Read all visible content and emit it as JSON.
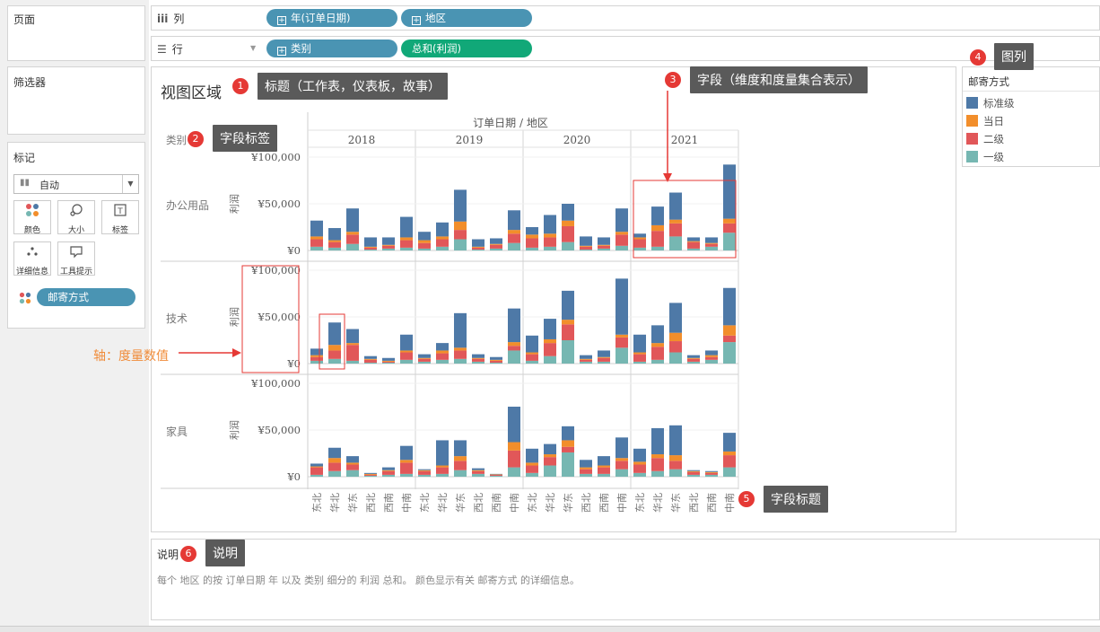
{
  "left_panel": {
    "pages_title": "页面",
    "filters_title": "筛选器",
    "marks": {
      "title": "标记",
      "mark_type": "自动",
      "buttons": [
        {
          "label": "颜色",
          "icon": "color-icon"
        },
        {
          "label": "大小",
          "icon": "size-icon"
        },
        {
          "label": "标签",
          "icon": "label-icon"
        },
        {
          "label": "详细信息",
          "icon": "detail-icon"
        },
        {
          "label": "工具提示",
          "icon": "tooltip-icon"
        }
      ],
      "color_field": "邮寄方式"
    }
  },
  "shelves": {
    "columns_label": "列",
    "rows_label": "行",
    "column_pills": [
      "年(订单日期)",
      "地区"
    ],
    "row_pills": [
      "类别",
      "总和(利润)"
    ]
  },
  "view": {
    "title": "视图区域",
    "column_header_title": "订单日期 / 地区",
    "row_header_title": "类别",
    "axis_label": "利润",
    "axis_ticks": [
      "¥100,000",
      "¥50,000",
      "¥0"
    ]
  },
  "legend": {
    "title": "邮寄方式",
    "items": [
      {
        "label": "标准级",
        "color": "#4e79a7"
      },
      {
        "label": "当日",
        "color": "#f28e2b"
      },
      {
        "label": "二级",
        "color": "#e15759"
      },
      {
        "label": "一级",
        "color": "#76b7b2"
      }
    ]
  },
  "caption": {
    "title": "说明",
    "text": "每个 地区 的按 订单日期 年 以及 类别 细分的 利润 总和。 颜色显示有关 邮寄方式 的详细信息。"
  },
  "annotations": [
    {
      "n": "1",
      "text": "标题（工作表，仪表板，故事）"
    },
    {
      "n": "2",
      "text": "字段标签"
    },
    {
      "n": "3",
      "text": "字段（维度和度量集合表示）"
    },
    {
      "n": "4",
      "text": "图列"
    },
    {
      "n": "5",
      "text": "字段标题"
    },
    {
      "n": "6",
      "text": "说明"
    }
  ],
  "axis_note": "轴：度量数值",
  "chart_data": {
    "type": "bar",
    "stacked": true,
    "title": "视图区域",
    "xlabel": "订单日期 / 地区",
    "ylabel": "利润",
    "ylim": [
      0,
      100000
    ],
    "years": [
      "2018",
      "2019",
      "2020",
      "2021"
    ],
    "regions": [
      "东北",
      "华北",
      "华东",
      "西北",
      "西南",
      "中南"
    ],
    "categories": [
      "办公用品",
      "技术",
      "家具"
    ],
    "series_order": [
      "一级",
      "二级",
      "当日",
      "标准级"
    ],
    "values": {
      "办公用品": {
        "2018": [
          [
            4000,
            8000,
            3000,
            17000
          ],
          [
            3000,
            6000,
            2000,
            13000
          ],
          [
            7000,
            10000,
            3000,
            25000
          ],
          [
            1000,
            2000,
            1000,
            10000
          ],
          [
            2000,
            3000,
            1000,
            8000
          ],
          [
            3000,
            8000,
            3000,
            22000
          ]
        ],
        "2019": [
          [
            2000,
            6000,
            3000,
            9000
          ],
          [
            4000,
            8000,
            3000,
            15000
          ],
          [
            12000,
            10000,
            9000,
            34000
          ],
          [
            1000,
            2000,
            1000,
            8000
          ],
          [
            2000,
            4000,
            1000,
            6000
          ],
          [
            8000,
            10000,
            4000,
            21000
          ]
        ],
        "2020": [
          [
            3000,
            10000,
            4000,
            8000
          ],
          [
            4000,
            10000,
            4000,
            20000
          ],
          [
            9000,
            17000,
            6000,
            18000
          ],
          [
            1000,
            3000,
            1000,
            10000
          ],
          [
            2000,
            3000,
            1000,
            8000
          ],
          [
            5000,
            12000,
            3000,
            25000
          ]
        ],
        "2021": [
          [
            3000,
            9000,
            2000,
            4000
          ],
          [
            4000,
            17000,
            6000,
            20000
          ],
          [
            15000,
            14000,
            4000,
            29000
          ],
          [
            2000,
            7000,
            1000,
            4000
          ],
          [
            4000,
            3000,
            1000,
            6000
          ],
          [
            19000,
            10000,
            5000,
            58000
          ]
        ]
      },
      "技术": {
        "2018": [
          [
            3000,
            4000,
            2000,
            7000
          ],
          [
            5000,
            9000,
            6000,
            24000
          ],
          [
            3000,
            17000,
            2000,
            15000
          ],
          [
            1000,
            3000,
            1000,
            3000
          ],
          [
            1000,
            1000,
            1000,
            3000
          ],
          [
            4000,
            8000,
            2000,
            17000
          ]
        ],
        "2019": [
          [
            2000,
            3000,
            1000,
            4000
          ],
          [
            4000,
            7000,
            3000,
            8000
          ],
          [
            5000,
            9000,
            3000,
            37000
          ],
          [
            2000,
            3000,
            1000,
            4000
          ],
          [
            1000,
            2000,
            1000,
            3000
          ],
          [
            14000,
            5000,
            4000,
            36000
          ]
        ],
        "2020": [
          [
            3000,
            7000,
            2000,
            18000
          ],
          [
            8000,
            14000,
            4000,
            22000
          ],
          [
            25000,
            17000,
            5000,
            31000
          ],
          [
            2000,
            2000,
            1000,
            4000
          ],
          [
            2000,
            4000,
            1000,
            7000
          ],
          [
            17000,
            11000,
            3000,
            60000
          ]
        ],
        "2021": [
          [
            2000,
            8000,
            2000,
            19000
          ],
          [
            4000,
            14000,
            4000,
            19000
          ],
          [
            12000,
            12000,
            9000,
            32000
          ],
          [
            2000,
            3000,
            1000,
            3000
          ],
          [
            4000,
            3000,
            2000,
            5000
          ],
          [
            23000,
            7000,
            11000,
            40000
          ]
        ]
      },
      "家具": {
        "2018": [
          [
            2000,
            8000,
            1000,
            3000
          ],
          [
            6000,
            9000,
            5000,
            11000
          ],
          [
            7000,
            6000,
            2000,
            7000
          ],
          [
            1000,
            1000,
            1000,
            1000
          ],
          [
            2000,
            4000,
            1000,
            3000
          ],
          [
            3000,
            12000,
            3000,
            15000
          ]
        ],
        "2019": [
          [
            2000,
            4000,
            1000,
            1000
          ],
          [
            3000,
            7000,
            2000,
            27000
          ],
          [
            7000,
            10000,
            5000,
            17000
          ],
          [
            3000,
            3000,
            1000,
            2000
          ],
          [
            1000,
            1000,
            500,
            500
          ],
          [
            10000,
            18000,
            9000,
            38000
          ]
        ],
        "2020": [
          [
            4000,
            8000,
            3000,
            15000
          ],
          [
            12000,
            9000,
            3000,
            11000
          ],
          [
            26000,
            6000,
            7000,
            15000
          ],
          [
            3000,
            5000,
            2000,
            8000
          ],
          [
            3000,
            7000,
            2000,
            10000
          ],
          [
            8000,
            9000,
            3000,
            22000
          ]
        ],
        "2021": [
          [
            4000,
            9000,
            3000,
            14000
          ],
          [
            6000,
            14000,
            4000,
            28000
          ],
          [
            8000,
            9000,
            6000,
            32000
          ],
          [
            2000,
            3000,
            1000,
            1000
          ],
          [
            2000,
            2000,
            1000,
            1000
          ],
          [
            10000,
            13000,
            4000,
            20000
          ]
        ]
      }
    }
  }
}
